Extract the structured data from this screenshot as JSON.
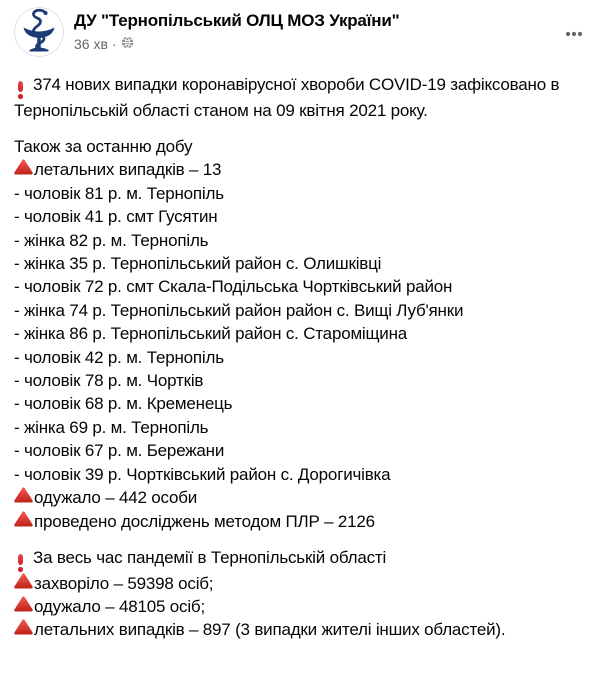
{
  "header": {
    "page_name": "ДУ \"Тернопільський ОЛЦ МОЗ України\"",
    "timestamp": "36 хв",
    "separator": "·",
    "avatar_icon": "bowl-of-hygieia-logo",
    "privacy_icon": "globe-icon",
    "more_options_icon": "three-dots-icon"
  },
  "colors": {
    "text_primary": "#050505",
    "text_secondary": "#65676b",
    "emoji_red": "#d5202e",
    "triangle_red_top": "#ee564d",
    "triangle_red_bottom": "#c4251b",
    "logo_navy": "#1c3b76"
  },
  "post": {
    "sections": [
      {
        "lines": [
          {
            "icon": "red-exclamation-icon",
            "text": "374 нових випадки коронавірусної хвороби COVID-19 зафіксовано в Тернопільській області станом на 09 квітня 2021 року."
          }
        ]
      },
      {
        "lines": [
          {
            "text": "Також за останню добу"
          },
          {
            "icon": "red-triangle-icon",
            "text": "летальних випадків – 13"
          },
          {
            "text": "- чоловік 81 р. м. Тернопіль"
          },
          {
            "text": "- чоловік 41 р. смт Гусятин"
          },
          {
            "text": "- жінка 82 р. м. Тернопіль"
          },
          {
            "text": "- жінка 35 р. Тернопільський район с. Олишківці"
          },
          {
            "text": "- чоловік 72 р. смт Скала-Подільська Чортківський район"
          },
          {
            "text": "- жінка 74 р. Тернопільський район район с. Вищі Луб'янки"
          },
          {
            "text": "- жінка 86 р. Тернопільський район с. Староміщина"
          },
          {
            "text": "- чоловік 42 р. м. Тернопіль"
          },
          {
            "text": "- чоловік 78 р. м. Чортків"
          },
          {
            "text": "- чоловік 68 р. м. Кременець"
          },
          {
            "text": "- жінка 69 р. м. Тернопіль"
          },
          {
            "text": "- чоловік 67 р. м. Бережани"
          },
          {
            "text": "- чоловік 39 р. Чортківський район с. Дорогичівка"
          },
          {
            "icon": "red-triangle-icon",
            "text": "одужало – 442 особи"
          },
          {
            "icon": "red-triangle-icon",
            "text": "проведено досліджень методом ПЛР – 2126"
          }
        ]
      },
      {
        "lines": [
          {
            "icon": "red-exclamation-icon",
            "text": "За весь час пандемії в Тернопільській області"
          },
          {
            "icon": "red-triangle-icon",
            "text": "захворіло – 59398 осіб;"
          },
          {
            "icon": "red-triangle-icon",
            "text": "одужало – 48105 осіб;"
          },
          {
            "icon": "red-triangle-icon",
            "text": "летальних випадків – 897 (3 випадки жителі інших областей)."
          }
        ]
      }
    ]
  }
}
